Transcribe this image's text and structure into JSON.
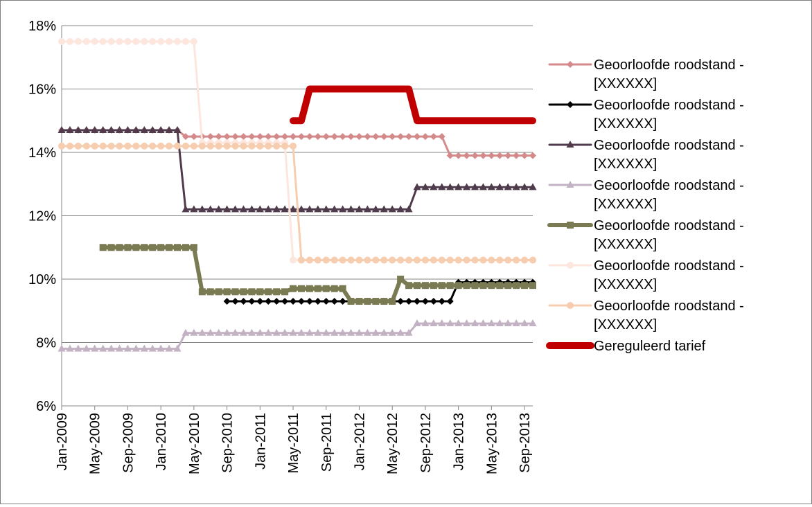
{
  "chart_data": {
    "type": "line",
    "title": "",
    "xlabel": "",
    "ylabel": "",
    "ylim": [
      0.06,
      0.18
    ],
    "y_tick_values": [
      0.06,
      0.08,
      0.1,
      0.12,
      0.14,
      0.16,
      0.18
    ],
    "y_tick_labels": [
      "6%",
      "8%",
      "10%",
      "12%",
      "14%",
      "16%",
      "18%"
    ],
    "x_start": "2009-01",
    "x_end": "2013-10",
    "x_tick_labels": [
      "Jan-2009",
      "May-2009",
      "Sep-2009",
      "Jan-2010",
      "May-2010",
      "Sep-2010",
      "Jan-2011",
      "May-2011",
      "Sep-2011",
      "Jan-2012",
      "May-2012",
      "Sep-2012",
      "Jan-2013",
      "May-2013",
      "Sep-2013"
    ],
    "x_tick_dates": [
      "2009-01",
      "2009-05",
      "2009-09",
      "2010-01",
      "2010-05",
      "2010-09",
      "2011-01",
      "2011-05",
      "2011-09",
      "2012-01",
      "2012-05",
      "2012-09",
      "2013-01",
      "2013-05",
      "2013-09"
    ],
    "grid": true,
    "legend_position": "right",
    "series": [
      {
        "name": "Geoorloofde roodstand - [XXXXXX]",
        "color": "#d48a8a",
        "marker": "diamond",
        "width": 3,
        "points": [
          [
            "2009-01",
            0.147
          ],
          [
            "2010-03",
            0.147
          ],
          [
            "2010-04",
            0.145
          ],
          [
            "2012-11",
            0.145
          ],
          [
            "2012-12",
            0.139
          ],
          [
            "2013-10",
            0.139
          ]
        ]
      },
      {
        "name": "Geoorloofde roodstand - [XXXXXX]",
        "color": "#000000",
        "marker": "diamond",
        "width": 3,
        "points": [
          [
            "2010-09",
            0.093
          ],
          [
            "2012-12",
            0.093
          ],
          [
            "2013-01",
            0.099
          ],
          [
            "2013-10",
            0.099
          ]
        ]
      },
      {
        "name": "Geoorloofde roodstand - [XXXXXX]",
        "color": "#4f3b4b",
        "marker": "triangle",
        "width": 3,
        "points": [
          [
            "2009-01",
            0.147
          ],
          [
            "2010-03",
            0.147
          ],
          [
            "2010-04",
            0.122
          ],
          [
            "2012-07",
            0.122
          ],
          [
            "2012-08",
            0.129
          ],
          [
            "2013-10",
            0.129
          ]
        ]
      },
      {
        "name": "Geoorloofde roodstand - [XXXXXX]",
        "color": "#c2b2c4",
        "marker": "triangle",
        "width": 3,
        "points": [
          [
            "2009-01",
            0.078
          ],
          [
            "2010-03",
            0.078
          ],
          [
            "2010-04",
            0.083
          ],
          [
            "2012-07",
            0.083
          ],
          [
            "2012-08",
            0.086
          ],
          [
            "2013-10",
            0.086
          ]
        ]
      },
      {
        "name": "Geoorloofde roodstand - [XXXXXX]",
        "color": "#7a7b52",
        "marker": "square",
        "width": 6,
        "points": [
          [
            "2009-06",
            0.11
          ],
          [
            "2010-05",
            0.11
          ],
          [
            "2010-06",
            0.096
          ],
          [
            "2011-04",
            0.096
          ],
          [
            "2011-05",
            0.097
          ],
          [
            "2011-11",
            0.097
          ],
          [
            "2011-12",
            0.093
          ],
          [
            "2012-05",
            0.093
          ],
          [
            "2012-06",
            0.1
          ],
          [
            "2012-07",
            0.098
          ],
          [
            "2013-10",
            0.098
          ]
        ]
      },
      {
        "name": "Geoorloofde roodstand - [XXXXXX]",
        "color": "#fde6de",
        "marker": "circle",
        "width": 3,
        "points": [
          [
            "2009-01",
            0.175
          ],
          [
            "2010-05",
            0.175
          ],
          [
            "2010-06",
            0.143
          ],
          [
            "2011-04",
            0.143
          ],
          [
            "2011-05",
            0.106
          ],
          [
            "2013-10",
            0.106
          ]
        ]
      },
      {
        "name": "Geoorloofde roodstand - [XXXXXX]",
        "color": "#f7cdb0",
        "marker": "circle",
        "width": 3,
        "points": [
          [
            "2009-01",
            0.142
          ],
          [
            "2011-05",
            0.142
          ],
          [
            "2011-06",
            0.106
          ],
          [
            "2013-10",
            0.106
          ]
        ]
      },
      {
        "name": "Gereguleerd tarief",
        "color": "#c00000",
        "marker": "none",
        "width": 10,
        "points": [
          [
            "2011-05",
            0.15
          ],
          [
            "2011-06",
            0.15
          ],
          [
            "2011-07",
            0.16
          ],
          [
            "2012-07",
            0.16
          ],
          [
            "2012-08",
            0.15
          ],
          [
            "2013-10",
            0.15
          ]
        ]
      }
    ]
  }
}
